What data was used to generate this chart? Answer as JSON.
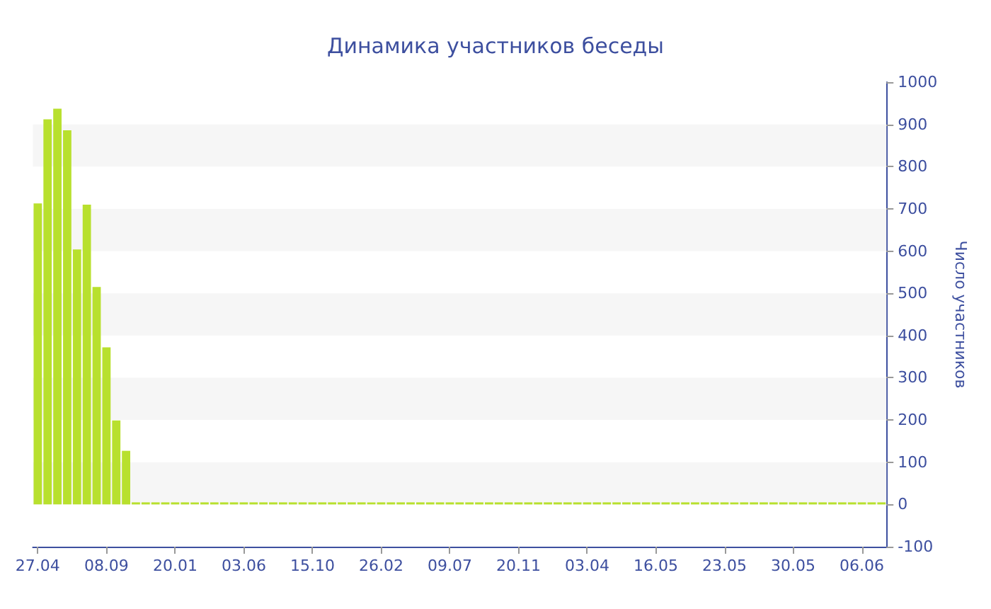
{
  "chart_data": {
    "type": "bar",
    "title": "Динамика участников беседы",
    "ylabel": "Число участников",
    "categories": [
      "27.04",
      null,
      null,
      null,
      null,
      null,
      null,
      "08.09",
      null,
      null,
      null,
      null,
      null,
      null,
      "20.01",
      null,
      null,
      null,
      null,
      null,
      null,
      "03.06",
      null,
      null,
      null,
      null,
      null,
      null,
      "15.10",
      null,
      null,
      null,
      null,
      null,
      null,
      "26.02",
      null,
      null,
      null,
      null,
      null,
      null,
      "09.07",
      null,
      null,
      null,
      null,
      null,
      null,
      "20.11",
      null,
      null,
      null,
      null,
      null,
      null,
      "03.04",
      null,
      null,
      null,
      null,
      null,
      null,
      "16.05",
      null,
      null,
      null,
      null,
      null,
      null,
      "23.05",
      null,
      null,
      null,
      null,
      null,
      null,
      "30.05",
      null,
      null,
      null,
      null,
      null,
      null,
      "06.06",
      null,
      null
    ],
    "values": [
      713,
      912,
      937,
      886,
      604,
      710,
      515,
      372,
      199,
      127,
      5,
      5,
      5,
      5,
      5,
      5,
      5,
      5,
      5,
      5,
      5,
      5,
      5,
      5,
      5,
      5,
      5,
      5,
      5,
      5,
      5,
      5,
      5,
      5,
      5,
      5,
      5,
      5,
      5,
      5,
      5,
      5,
      5,
      5,
      5,
      5,
      5,
      5,
      5,
      5,
      5,
      5,
      5,
      5,
      5,
      5,
      5,
      5,
      5,
      5,
      5,
      5,
      5,
      5,
      5,
      5,
      5,
      5,
      5,
      5,
      5,
      5,
      5,
      5,
      5,
      5,
      5,
      5,
      5,
      5,
      5,
      5,
      5,
      5,
      5,
      5,
      5
    ],
    "color": "#b8e02e",
    "ylim": [
      -100,
      1000
    ],
    "yticks": [
      -100,
      0,
      100,
      200,
      300,
      400,
      500,
      600,
      700,
      800,
      900,
      1000
    ],
    "bands": [
      {
        "axis": "y",
        "from": 0,
        "to": 100,
        "color": "#f6f6f6"
      },
      {
        "axis": "y",
        "from": 200,
        "to": 300,
        "color": "#f6f6f6"
      },
      {
        "axis": "y",
        "from": 400,
        "to": 500,
        "color": "#f6f6f6"
      },
      {
        "axis": "y",
        "from": 600,
        "to": 700,
        "color": "#f6f6f6"
      },
      {
        "axis": "y",
        "from": 800,
        "to": 900,
        "color": "#f6f6f6"
      }
    ]
  }
}
